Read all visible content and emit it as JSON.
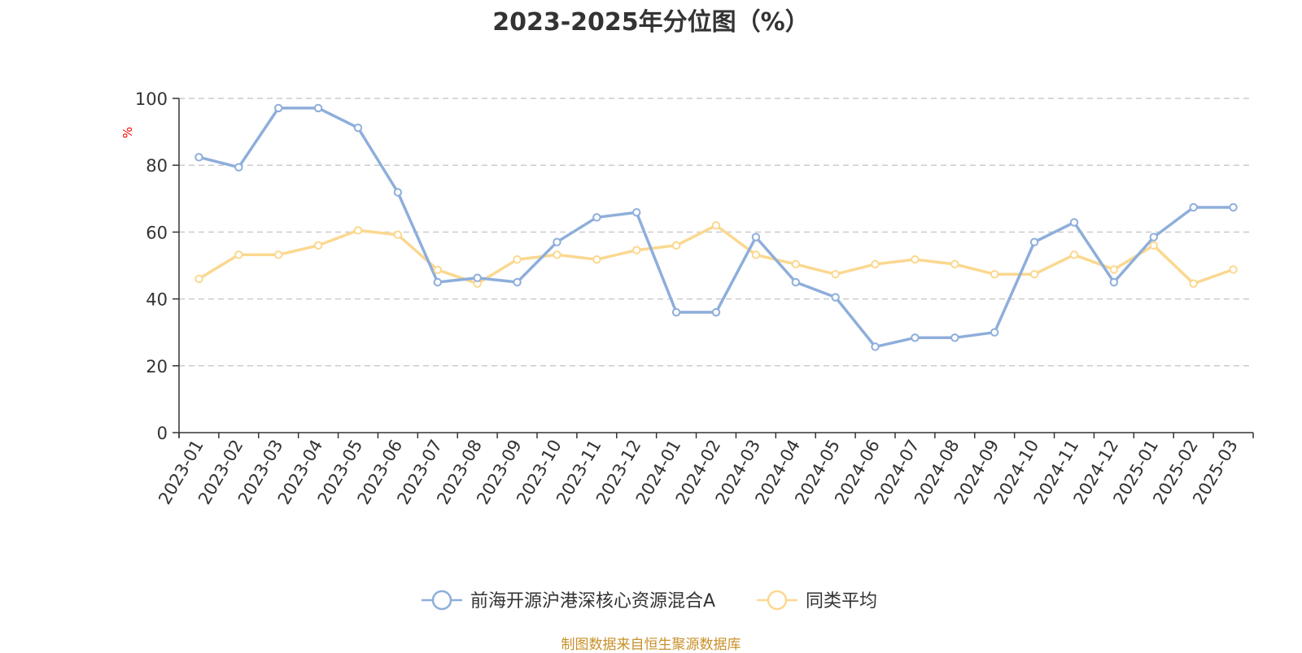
{
  "chart_data": {
    "type": "line",
    "title": "2023-2025年分位图（%）",
    "xlabel": "",
    "ylabel": "%",
    "ylim": [
      0,
      100
    ],
    "yticks": [
      0,
      20,
      40,
      60,
      80,
      100
    ],
    "grid": "horizontal dashed",
    "legend_position": "bottom-center",
    "categories": [
      "2023-01",
      "2023-02",
      "2023-03",
      "2023-04",
      "2023-05",
      "2023-06",
      "2023-07",
      "2023-08",
      "2023-09",
      "2023-10",
      "2023-11",
      "2023-12",
      "2024-01",
      "2024-02",
      "2024-03",
      "2024-04",
      "2024-05",
      "2024-06",
      "2024-07",
      "2024-08",
      "2024-09",
      "2024-10",
      "2024-11",
      "2024-12",
      "2025-01",
      "2025-02",
      "2025-03"
    ],
    "series": [
      {
        "name": "前海开源沪港深核心资源混合A",
        "color": "#8eaedb",
        "values": [
          82.4,
          79.4,
          97.1,
          97.1,
          91.2,
          71.9,
          45.0,
          46.3,
          45.0,
          57.0,
          64.4,
          65.9,
          36.0,
          36.0,
          58.5,
          45.0,
          40.5,
          25.7,
          28.4,
          28.4,
          30.0,
          57.0,
          62.9,
          45.0,
          58.5,
          67.4,
          67.4
        ]
      },
      {
        "name": "同类平均",
        "color": "#fbd890",
        "values": [
          46.0,
          53.2,
          53.2,
          56.0,
          60.5,
          59.2,
          48.7,
          44.6,
          51.8,
          53.2,
          51.8,
          54.6,
          56.0,
          62.0,
          53.2,
          50.4,
          47.4,
          50.4,
          51.8,
          50.4,
          47.4,
          47.4,
          53.2,
          48.8,
          56.0,
          44.6,
          48.8
        ]
      }
    ],
    "source_note": "制图数据来自恒生聚源数据库",
    "source_color": "#c8902a",
    "ylabel_color": "#ff0000",
    "axis_color": "#333333",
    "grid_color": "#cccccc"
  }
}
